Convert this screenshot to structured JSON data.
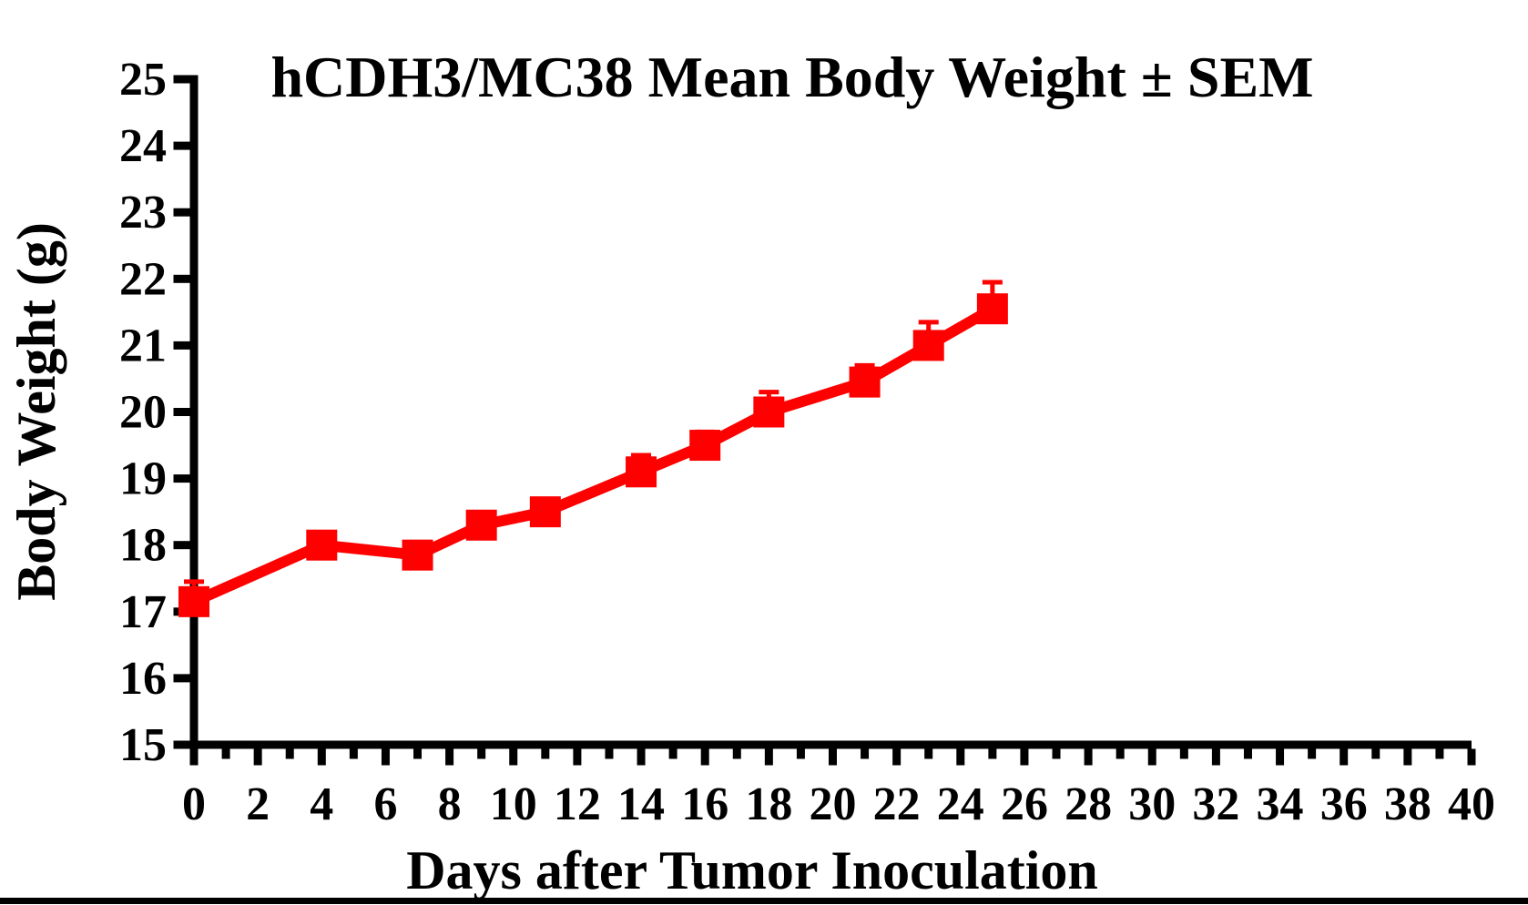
{
  "figure": {
    "background_color": "#ffffff",
    "bottom_bar_color": "#000000"
  },
  "chart_data": {
    "type": "line",
    "title": "hCDH3/MC38 Mean Body Weight ± SEM",
    "xlabel": "Days after Tumor Inoculation",
    "ylabel": "Body Weight (g)",
    "xlim": [
      0,
      40
    ],
    "ylim": [
      15,
      25
    ],
    "x_tick_labels": [
      0,
      2,
      4,
      6,
      8,
      10,
      12,
      14,
      16,
      18,
      20,
      22,
      24,
      26,
      28,
      30,
      32,
      34,
      36,
      38,
      40
    ],
    "x_minor_tick_step": 1,
    "y_tick_labels": [
      15,
      16,
      17,
      18,
      19,
      20,
      21,
      22,
      23,
      24,
      25
    ],
    "grid": false,
    "legend": "none",
    "axis_color": "#000000",
    "error_bar_style": "SEM, upper cap only visible",
    "series": [
      {
        "name": "hCDH3/MC38 mean body weight",
        "color": "#FE0000",
        "marker": "square",
        "x": [
          0,
          4,
          7,
          9,
          11,
          14,
          16,
          18,
          21,
          23,
          25
        ],
        "y": [
          17.15,
          18.0,
          17.85,
          18.3,
          18.5,
          19.1,
          19.5,
          20.0,
          20.45,
          21.0,
          21.55
        ],
        "sem": [
          0.3,
          0.15,
          0.15,
          0.15,
          0.15,
          0.25,
          0.2,
          0.3,
          0.25,
          0.35,
          0.4
        ]
      }
    ]
  }
}
